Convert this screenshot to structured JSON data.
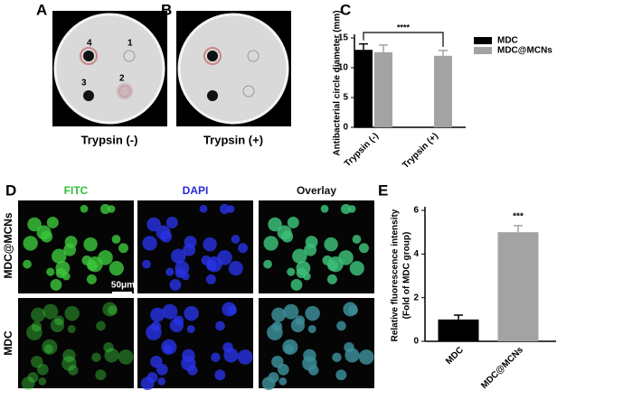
{
  "panels": {
    "A": {
      "label": "A",
      "caption": "Trypsin (-)",
      "spots": [
        "1",
        "2",
        "3",
        "4"
      ]
    },
    "B": {
      "label": "B",
      "caption": "Trypsin (+)"
    },
    "C": {
      "label": "C"
    },
    "D": {
      "label": "D",
      "columns": [
        "FITC",
        "DAPI",
        "Overlay"
      ],
      "rows": [
        "MDC@MCNs",
        "MDC"
      ],
      "scale_bar": "50μm"
    },
    "E": {
      "label": "E"
    }
  },
  "chart_data": [
    {
      "type": "bar",
      "y_label": "Antibacterial circle diameter (mm)",
      "categories": [
        "Trypsin (-)",
        "Trypsin (+)"
      ],
      "series": [
        {
          "name": "MDC",
          "color": "#000000",
          "values": [
            13,
            null
          ],
          "errors": [
            1,
            null
          ]
        },
        {
          "name": "MDC@MCNs",
          "color": "#a3a3a3",
          "values": [
            12.6,
            12
          ],
          "errors": [
            1.2,
            0.9
          ]
        }
      ],
      "ylim": [
        0,
        15
      ],
      "yticks": [
        0,
        5,
        10,
        15
      ],
      "annotation": "****",
      "legend": "right"
    },
    {
      "type": "bar",
      "y_label": [
        "Relative fluorescence intensity",
        "(Fold of MDC group)"
      ],
      "categories": [
        "MDC",
        "MDC@MCNs"
      ],
      "values": [
        1,
        5
      ],
      "errors": [
        0.2,
        0.3
      ],
      "colors": [
        "#000000",
        "#a3a3a3"
      ],
      "ylim": [
        0,
        6
      ],
      "yticks": [
        0,
        2,
        4,
        6
      ],
      "annotation": "***"
    }
  ]
}
